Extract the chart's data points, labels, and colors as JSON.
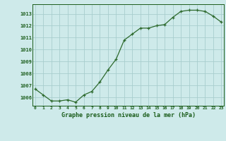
{
  "x": [
    0,
    1,
    2,
    3,
    4,
    5,
    6,
    7,
    8,
    9,
    10,
    11,
    12,
    13,
    14,
    15,
    16,
    17,
    18,
    19,
    20,
    21,
    22,
    23
  ],
  "y": [
    1006.7,
    1006.2,
    1005.7,
    1005.7,
    1005.8,
    1005.6,
    1006.2,
    1006.5,
    1007.3,
    1008.3,
    1009.2,
    1010.8,
    1011.3,
    1011.8,
    1011.8,
    1012.0,
    1012.1,
    1012.7,
    1013.2,
    1013.3,
    1013.3,
    1013.2,
    1012.8,
    1012.3
  ],
  "line_color": "#2d6a2d",
  "marker": "+",
  "bg_color": "#ceeaea",
  "grid_color": "#a8cece",
  "xlabel": "Graphe pression niveau de la mer (hPa)",
  "xlabel_color": "#1a5c1a",
  "tick_color": "#1a5c1a",
  "ylim_min": 1005.3,
  "ylim_max": 1013.8,
  "yticks": [
    1006,
    1007,
    1008,
    1009,
    1010,
    1011,
    1012,
    1013
  ],
  "xlim_min": -0.3,
  "xlim_max": 23.3
}
